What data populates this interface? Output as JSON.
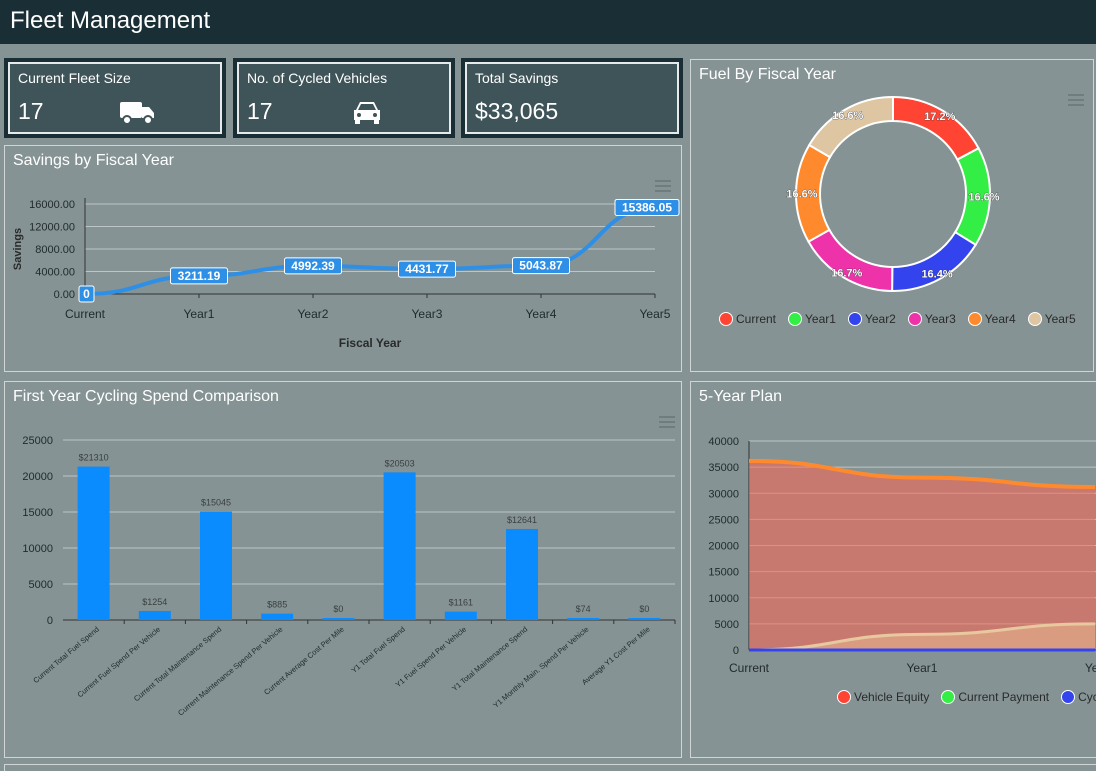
{
  "app": {
    "title": "Fleet Management"
  },
  "kpis": [
    {
      "label": "Current Fleet Size",
      "value": "17",
      "icon": "truck-icon"
    },
    {
      "label": "No. of Cycled Vehicles",
      "value": "17",
      "icon": "car-icon"
    },
    {
      "label": "Total Savings",
      "value": "$33,065"
    }
  ],
  "panels": {
    "savings": {
      "title": "Savings by Fiscal Year"
    },
    "fuel": {
      "title": "Fuel By Fiscal Year"
    },
    "spend": {
      "title": "First Year Cycling Spend Comparison"
    },
    "plan": {
      "title": "5-Year Plan"
    }
  },
  "chart_data": [
    {
      "id": "savings",
      "type": "line",
      "categories": [
        "Current",
        "Year1",
        "Year2",
        "Year3",
        "Year4",
        "Year5"
      ],
      "series": [
        {
          "values": [
            0,
            3211.19,
            4992.39,
            4431.77,
            5043.87,
            15386.05
          ]
        }
      ],
      "data_labels": [
        "0",
        "3211.19",
        "4992.39",
        "4431.77",
        "5043.87",
        "15386.05"
      ],
      "yticks": [
        "0.00",
        "4000.00",
        "8000.00",
        "12000.00",
        "16000.00"
      ],
      "ylim": [
        0,
        16000
      ],
      "xlabel": "Fiscal Year",
      "ylabel": "Savings",
      "color": "#2e8fe6"
    },
    {
      "id": "fuel",
      "type": "pie",
      "donut": true,
      "labels": [
        "Current",
        "Year1",
        "Year2",
        "Year3",
        "Year4",
        "Year5"
      ],
      "values": [
        17.2,
        16.6,
        16.4,
        16.7,
        16.6,
        16.6
      ],
      "data_labels": [
        "17.2%",
        "16.6%",
        "16.4%",
        "16.7%",
        "16.6%",
        "16.6%"
      ],
      "colors": [
        "#ff4433",
        "#33ee44",
        "#3344ee",
        "#ee33aa",
        "#ff8a2e",
        "#dfc6a2"
      ],
      "legend": "bottom"
    },
    {
      "id": "spend",
      "type": "bar",
      "categories": [
        "Current Total Fuel Spend",
        "Current Fuel Spend Per Vehicle",
        "Current Total Maintenance Spend",
        "Current Maintenance Spend Per Vehicle",
        "Current Average Cost Per Mile",
        "Y1 Total Fuel Spend",
        "Y1 Fuel Spend Per Vehicle",
        "Y1 Total Maintenance Spend",
        "Y1 Monthly Main. Spend Per Vehicle",
        "Average Y1 Cost Per Mile"
      ],
      "values": [
        21310,
        1254,
        15045,
        885,
        0,
        20503,
        1161,
        12641,
        74,
        0
      ],
      "data_labels": [
        "$21310",
        "$1254",
        "$15045",
        "$885",
        "$0",
        "$20503",
        "$1161",
        "$12641",
        "$74",
        "$0"
      ],
      "yticks": [
        "0",
        "5000",
        "10000",
        "15000",
        "20000",
        "25000"
      ],
      "ylim": [
        0,
        25000
      ],
      "color": "#0a8cff"
    },
    {
      "id": "plan",
      "type": "area",
      "categories": [
        "Current",
        "Year1",
        "Yea"
      ],
      "series": [
        {
          "name": "Vehicle Equity",
          "color": "#ff4433",
          "values": [
            36200,
            33000,
            31200
          ]
        },
        {
          "name": "Current Payment",
          "color": "#33ee44",
          "values": [
            0,
            3000,
            5000
          ]
        },
        {
          "name": "Cycl",
          "color": "#3344ee",
          "values": [
            0,
            0,
            0
          ]
        }
      ],
      "yticks": [
        "0",
        "5000",
        "10000",
        "15000",
        "20000",
        "25000",
        "30000",
        "35000",
        "40000"
      ],
      "ylim": [
        0,
        40000
      ],
      "legend": "bottom"
    }
  ]
}
